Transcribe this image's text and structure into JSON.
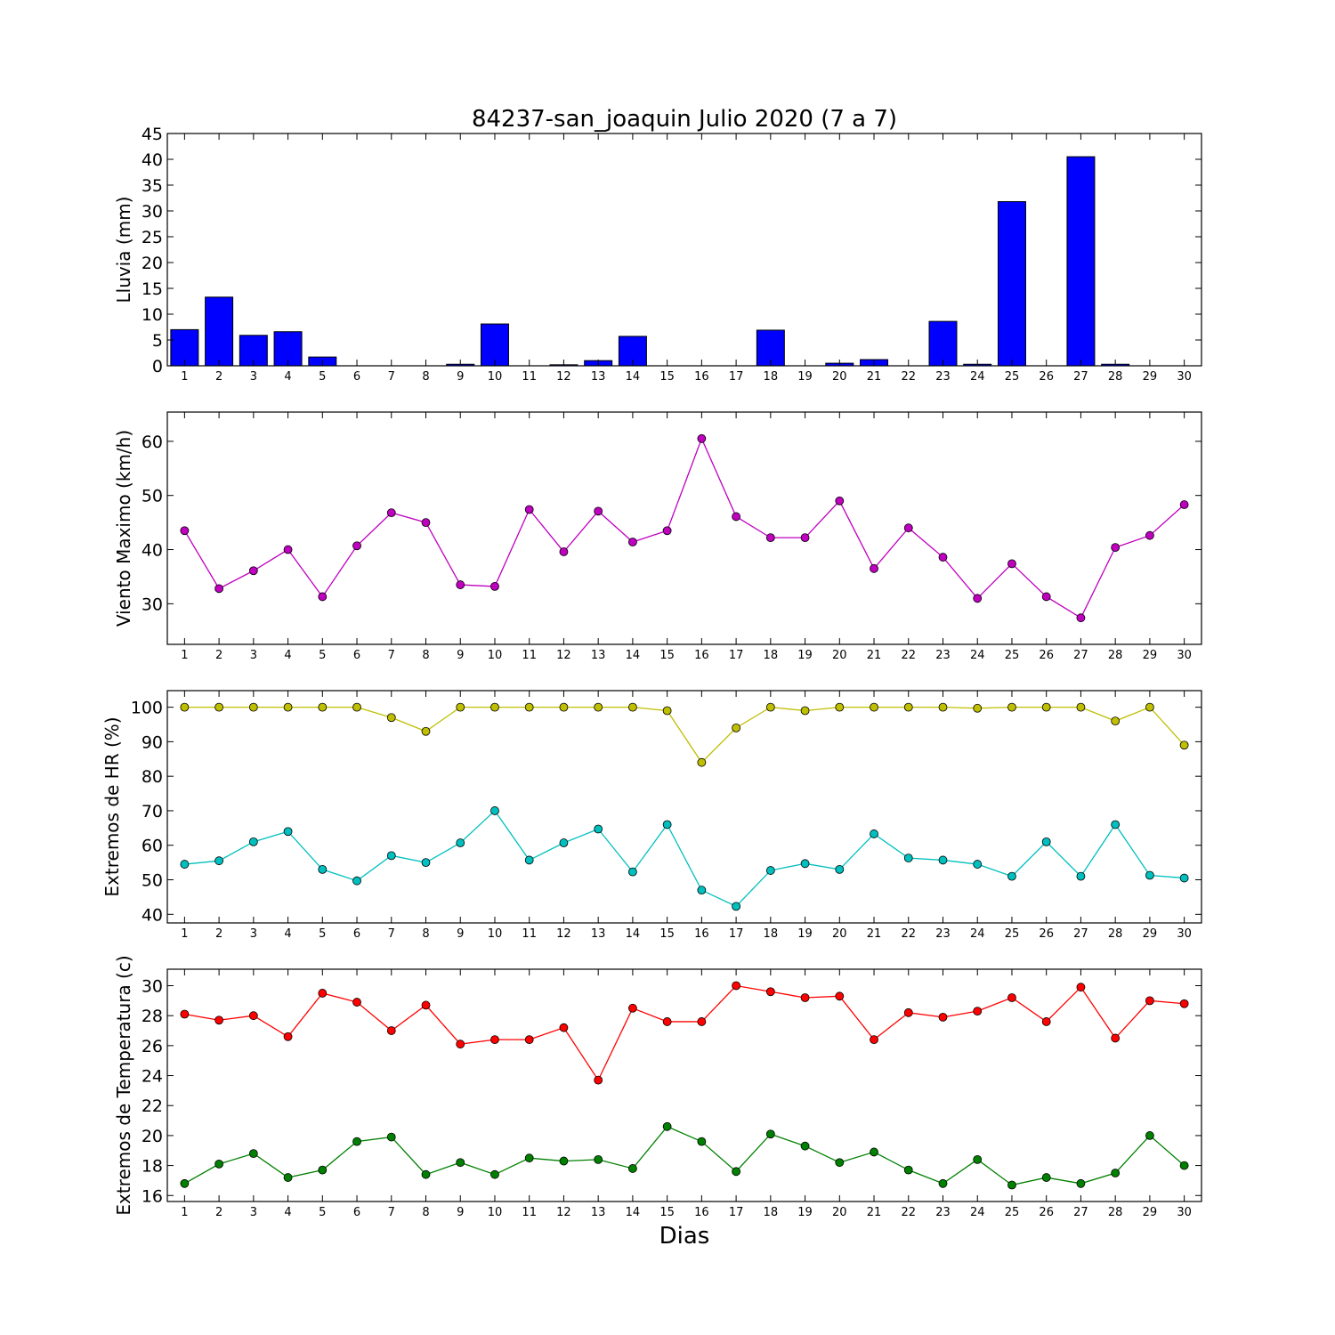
{
  "figure_title": "84237-san_joaquin Julio 2020  (7 a 7)",
  "xlabel": "Dias",
  "colors": {
    "rain_bar": "#0000ff",
    "wind": "#bf00bf",
    "hr_max": "#bfbf00",
    "hr_min": "#00bfbf",
    "t_max": "#ff0000",
    "t_min": "#008000"
  },
  "chart_data": [
    {
      "type": "bar",
      "title": "84237-san_joaquin Julio 2020  (7 a 7)",
      "ylabel": "Lluvia (mm)",
      "categories": [
        1,
        2,
        3,
        4,
        5,
        6,
        7,
        8,
        9,
        10,
        11,
        12,
        13,
        14,
        15,
        16,
        17,
        18,
        19,
        20,
        21,
        22,
        23,
        24,
        25,
        26,
        27,
        28,
        29,
        30
      ],
      "values": [
        7.0,
        13.3,
        5.9,
        6.6,
        1.7,
        0,
        0,
        0,
        0.3,
        8.1,
        0,
        0.2,
        1.0,
        5.7,
        0,
        0,
        0,
        6.9,
        0,
        0.5,
        1.2,
        0,
        8.6,
        0.3,
        31.8,
        0,
        40.5,
        0.3,
        0,
        0
      ],
      "ylim": [
        0,
        45
      ],
      "yticks": [
        0,
        5,
        10,
        15,
        20,
        25,
        30,
        35,
        40,
        45
      ],
      "grid": false
    },
    {
      "type": "line",
      "ylabel": "Viento Maximo (km/h)",
      "x": [
        1,
        2,
        3,
        4,
        5,
        6,
        7,
        8,
        9,
        10,
        11,
        12,
        13,
        14,
        15,
        16,
        17,
        18,
        19,
        20,
        21,
        22,
        23,
        24,
        25,
        26,
        27,
        28,
        29,
        30
      ],
      "series": [
        {
          "values": [
            43.5,
            32.8,
            36.1,
            40.0,
            31.3,
            40.7,
            46.8,
            45.0,
            33.5,
            33.2,
            47.4,
            39.6,
            47.1,
            41.4,
            43.5,
            60.5,
            46.1,
            42.2,
            42.2,
            49.0,
            36.5,
            44.0,
            38.6,
            31.0,
            37.4,
            31.3,
            27.4,
            40.4,
            42.6,
            48.3
          ]
        }
      ],
      "ylim": [
        22.5,
        65.4
      ],
      "yticks": [
        30,
        40,
        50,
        60
      ],
      "grid": false
    },
    {
      "type": "line",
      "ylabel": "Extremos de HR (%)",
      "x": [
        1,
        2,
        3,
        4,
        5,
        6,
        7,
        8,
        9,
        10,
        11,
        12,
        13,
        14,
        15,
        16,
        17,
        18,
        19,
        20,
        21,
        22,
        23,
        24,
        25,
        26,
        27,
        28,
        29,
        30
      ],
      "series": [
        {
          "values": [
            100,
            100,
            100,
            100,
            100,
            100,
            97,
            93,
            100,
            100,
            100,
            100,
            100,
            100,
            99,
            84,
            94,
            100,
            99,
            100,
            100,
            100,
            100,
            99.7,
            100,
            100,
            100,
            96,
            100,
            89
          ]
        },
        {
          "values": [
            54.5,
            55.5,
            61,
            64,
            53,
            49.7,
            57,
            55,
            60.7,
            70,
            55.7,
            60.7,
            64.7,
            52.3,
            66,
            47,
            42.3,
            52.7,
            54.7,
            53,
            63.3,
            56.3,
            55.7,
            54.5,
            51,
            61,
            51,
            66,
            51.3,
            50.5
          ]
        }
      ],
      "ylim": [
        37.5,
        104.8
      ],
      "yticks": [
        40,
        50,
        60,
        70,
        80,
        90,
        100
      ],
      "grid": false
    },
    {
      "type": "line",
      "ylabel": "Extremos de Temperatura (c)",
      "x": [
        1,
        2,
        3,
        4,
        5,
        6,
        7,
        8,
        9,
        10,
        11,
        12,
        13,
        14,
        15,
        16,
        17,
        18,
        19,
        20,
        21,
        22,
        23,
        24,
        25,
        26,
        27,
        28,
        29,
        30
      ],
      "series": [
        {
          "values": [
            28.1,
            27.7,
            28.0,
            26.6,
            29.5,
            28.9,
            27.0,
            28.7,
            26.1,
            26.4,
            26.4,
            27.2,
            23.7,
            28.5,
            27.6,
            27.6,
            30.0,
            29.6,
            29.2,
            29.3,
            26.4,
            28.2,
            27.9,
            28.3,
            29.2,
            27.6,
            29.9,
            26.5,
            29.0,
            28.8
          ]
        },
        {
          "values": [
            16.8,
            18.1,
            18.8,
            17.2,
            17.7,
            19.6,
            19.9,
            17.4,
            18.2,
            17.4,
            18.5,
            18.3,
            18.4,
            17.8,
            20.6,
            19.6,
            17.6,
            20.1,
            19.3,
            18.2,
            18.9,
            17.7,
            16.8,
            18.4,
            16.7,
            17.2,
            16.8,
            17.5,
            20.0,
            18.0
          ]
        }
      ],
      "ylim": [
        15.6,
        31.1
      ],
      "yticks": [
        16,
        18,
        20,
        22,
        24,
        26,
        28,
        30
      ],
      "xlabel": "Dias",
      "grid": false
    }
  ]
}
